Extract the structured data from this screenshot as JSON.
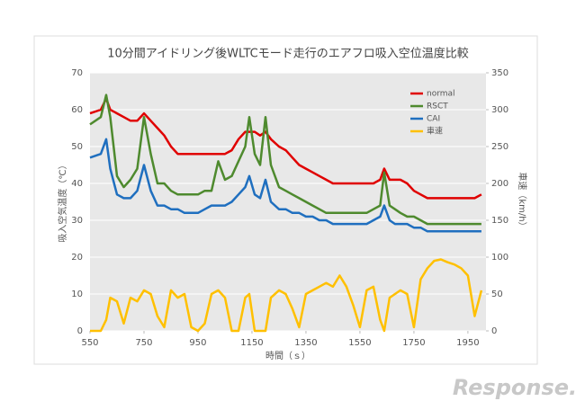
{
  "chart_data": {
    "type": "line",
    "title": "10分間アイドリング後WLTCモード走行のエアフロ吸入空位温度比較",
    "x_label": "時間（ｓ）",
    "y_label": "吸入空気温度（℃）",
    "y2_label": "車速（km/h）",
    "watermark": "Response.",
    "x": [
      550,
      590,
      610,
      625,
      650,
      675,
      700,
      725,
      750,
      775,
      800,
      825,
      850,
      875,
      900,
      925,
      950,
      975,
      1000,
      1025,
      1050,
      1075,
      1100,
      1125,
      1140,
      1160,
      1180,
      1200,
      1220,
      1250,
      1275,
      1300,
      1325,
      1350,
      1375,
      1400,
      1425,
      1450,
      1475,
      1500,
      1525,
      1550,
      1575,
      1600,
      1625,
      1640,
      1660,
      1680,
      1700,
      1725,
      1750,
      1775,
      1800,
      1825,
      1850,
      1875,
      1900,
      1925,
      1950,
      1975,
      2000
    ],
    "series": [
      {
        "name": "normal",
        "color": "#e00000",
        "values": [
          59,
          60,
          63,
          60,
          59,
          58,
          57,
          57,
          59,
          57,
          55,
          53,
          50,
          48,
          48,
          48,
          48,
          48,
          48,
          48,
          48,
          49,
          52,
          54,
          54,
          54,
          53,
          54,
          52,
          50,
          49,
          47,
          45,
          44,
          43,
          42,
          41,
          40,
          40,
          40,
          40,
          40,
          40,
          40,
          41,
          44,
          41,
          41,
          41,
          40,
          38,
          37,
          36,
          36,
          36,
          36,
          36,
          36,
          36,
          36,
          37
        ]
      },
      {
        "name": "RSCT",
        "color": "#4e8a2e",
        "values": [
          56,
          58,
          64,
          58,
          42,
          39,
          41,
          44,
          58,
          48,
          40,
          40,
          38,
          37,
          37,
          37,
          37,
          38,
          38,
          46,
          41,
          42,
          46,
          50,
          58,
          48,
          45,
          58,
          45,
          39,
          38,
          37,
          36,
          35,
          34,
          33,
          32,
          32,
          32,
          32,
          32,
          32,
          32,
          33,
          34,
          43,
          34,
          33,
          32,
          31,
          31,
          30,
          29,
          29,
          29,
          29,
          29,
          29,
          29,
          29,
          29
        ]
      },
      {
        "name": "CAI",
        "color": "#1f6fbf",
        "values": [
          47,
          48,
          52,
          44,
          37,
          36,
          36,
          38,
          45,
          38,
          34,
          34,
          33,
          33,
          32,
          32,
          32,
          33,
          34,
          34,
          34,
          35,
          37,
          39,
          42,
          37,
          36,
          41,
          35,
          33,
          33,
          32,
          32,
          31,
          31,
          30,
          30,
          29,
          29,
          29,
          29,
          29,
          29,
          30,
          31,
          34,
          30,
          29,
          29,
          29,
          28,
          28,
          27,
          27,
          27,
          27,
          27,
          27,
          27,
          27,
          27
        ]
      },
      {
        "name": "車速",
        "color": "#ffc000",
        "axis": "y2",
        "values": [
          0,
          0,
          15,
          45,
          40,
          10,
          45,
          40,
          55,
          50,
          20,
          5,
          55,
          45,
          50,
          5,
          0,
          10,
          50,
          55,
          45,
          0,
          0,
          45,
          50,
          0,
          0,
          0,
          45,
          55,
          50,
          30,
          5,
          50,
          55,
          60,
          65,
          60,
          75,
          60,
          35,
          5,
          55,
          60,
          15,
          0,
          45,
          50,
          55,
          50,
          5,
          70,
          85,
          95,
          97,
          93,
          90,
          85,
          75,
          20,
          55
        ]
      }
    ],
    "xlim": [
      550,
      2017
    ],
    "xticks": [
      550,
      750,
      950,
      1150,
      1350,
      1550,
      1750,
      1950
    ],
    "ylim": [
      0,
      70
    ],
    "yticks": [
      0,
      10,
      20,
      30,
      40,
      50,
      60,
      70
    ],
    "y2lim": [
      0,
      350
    ],
    "y2ticks": [
      0,
      50,
      100,
      150,
      200,
      250,
      300,
      350
    ],
    "grid": true,
    "legend": "upper-right"
  }
}
